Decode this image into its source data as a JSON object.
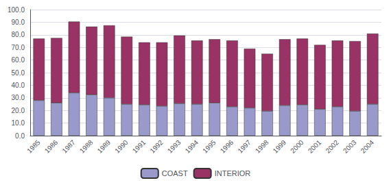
{
  "chart_data": {
    "type": "bar",
    "stacked": true,
    "categories": [
      "1985",
      "1986",
      "1987",
      "1988",
      "1989",
      "1990",
      "1991",
      "1992",
      "1993",
      "1994",
      "1995",
      "1996",
      "1997",
      "1998",
      "1999",
      "2000",
      "2001",
      "2002",
      "2003",
      "2004"
    ],
    "series": [
      {
        "name": "COAST",
        "color": "#9999cc",
        "values": [
          28.0,
          26.0,
          34.0,
          32.5,
          30.0,
          25.0,
          24.5,
          23.5,
          25.5,
          25.0,
          26.0,
          23.0,
          22.0,
          19.5,
          24.0,
          24.5,
          21.0,
          23.0,
          19.5,
          25.0
        ]
      },
      {
        "name": "INTERIOR",
        "color": "#993366",
        "values": [
          49.0,
          51.5,
          56.5,
          54.0,
          57.5,
          53.5,
          49.5,
          50.5,
          54.0,
          50.5,
          50.5,
          52.5,
          47.0,
          45.5,
          52.5,
          52.5,
          51.0,
          52.5,
          55.5,
          56.0
        ]
      }
    ],
    "ylim": [
      0,
      100
    ],
    "yticks": [
      {
        "value": 0,
        "label": "0.0"
      },
      {
        "value": 10,
        "label": "10.0"
      },
      {
        "value": 20,
        "label": "20.0"
      },
      {
        "value": 30,
        "label": "30.0"
      },
      {
        "value": 40,
        "label": "40.0"
      },
      {
        "value": 50,
        "label": "50.0"
      },
      {
        "value": 60,
        "label": "60.0"
      },
      {
        "value": 70,
        "label": "70.0"
      },
      {
        "value": 80,
        "label": "80.0"
      },
      {
        "value": 90,
        "label": "90.0"
      },
      {
        "value": 100,
        "label": "100.0"
      }
    ],
    "grid": true,
    "legend": "bottom"
  }
}
